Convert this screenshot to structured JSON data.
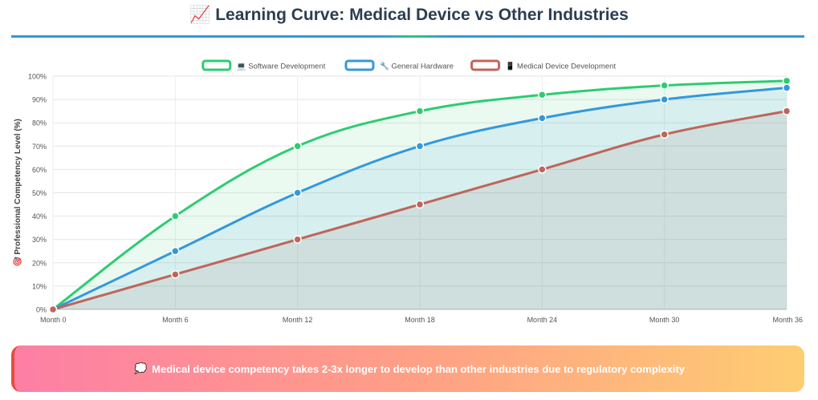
{
  "header": {
    "title_icon": "📈",
    "title": "Learning Curve: Medical Device vs Other Industries"
  },
  "chart_data": {
    "type": "line",
    "x": [
      "Month 0",
      "Month 6",
      "Month 12",
      "Month 18",
      "Month 24",
      "Month 30",
      "Month 36"
    ],
    "ylabel_icon": "🎯",
    "ylabel": "Professional Competency Level (%)",
    "xlabel": "",
    "ylim": [
      0,
      100
    ],
    "ytick_step": 10,
    "ytick_suffix": "%",
    "grid": true,
    "legend_position": "top-center",
    "series": [
      {
        "name": "Software Development",
        "icon": "💻",
        "color": "#2ecc71",
        "fill": "rgba(46,204,113,0.10)",
        "values": [
          0,
          40,
          70,
          85,
          92,
          96,
          98
        ]
      },
      {
        "name": "General Hardware",
        "icon": "🔧",
        "color": "#3498db",
        "fill": "rgba(52,152,219,0.10)",
        "values": [
          0,
          25,
          50,
          70,
          82,
          90,
          95
        ]
      },
      {
        "name": "Medical Device Development",
        "icon": "📱",
        "color": "#c0645a",
        "fill": "rgba(150,110,100,0.12)",
        "values": [
          0,
          15,
          30,
          45,
          60,
          75,
          85
        ]
      }
    ]
  },
  "banner": {
    "icon": "💭",
    "text": "Medical device competency takes 2-3x longer to develop than other industries due to regulatory complexity"
  }
}
